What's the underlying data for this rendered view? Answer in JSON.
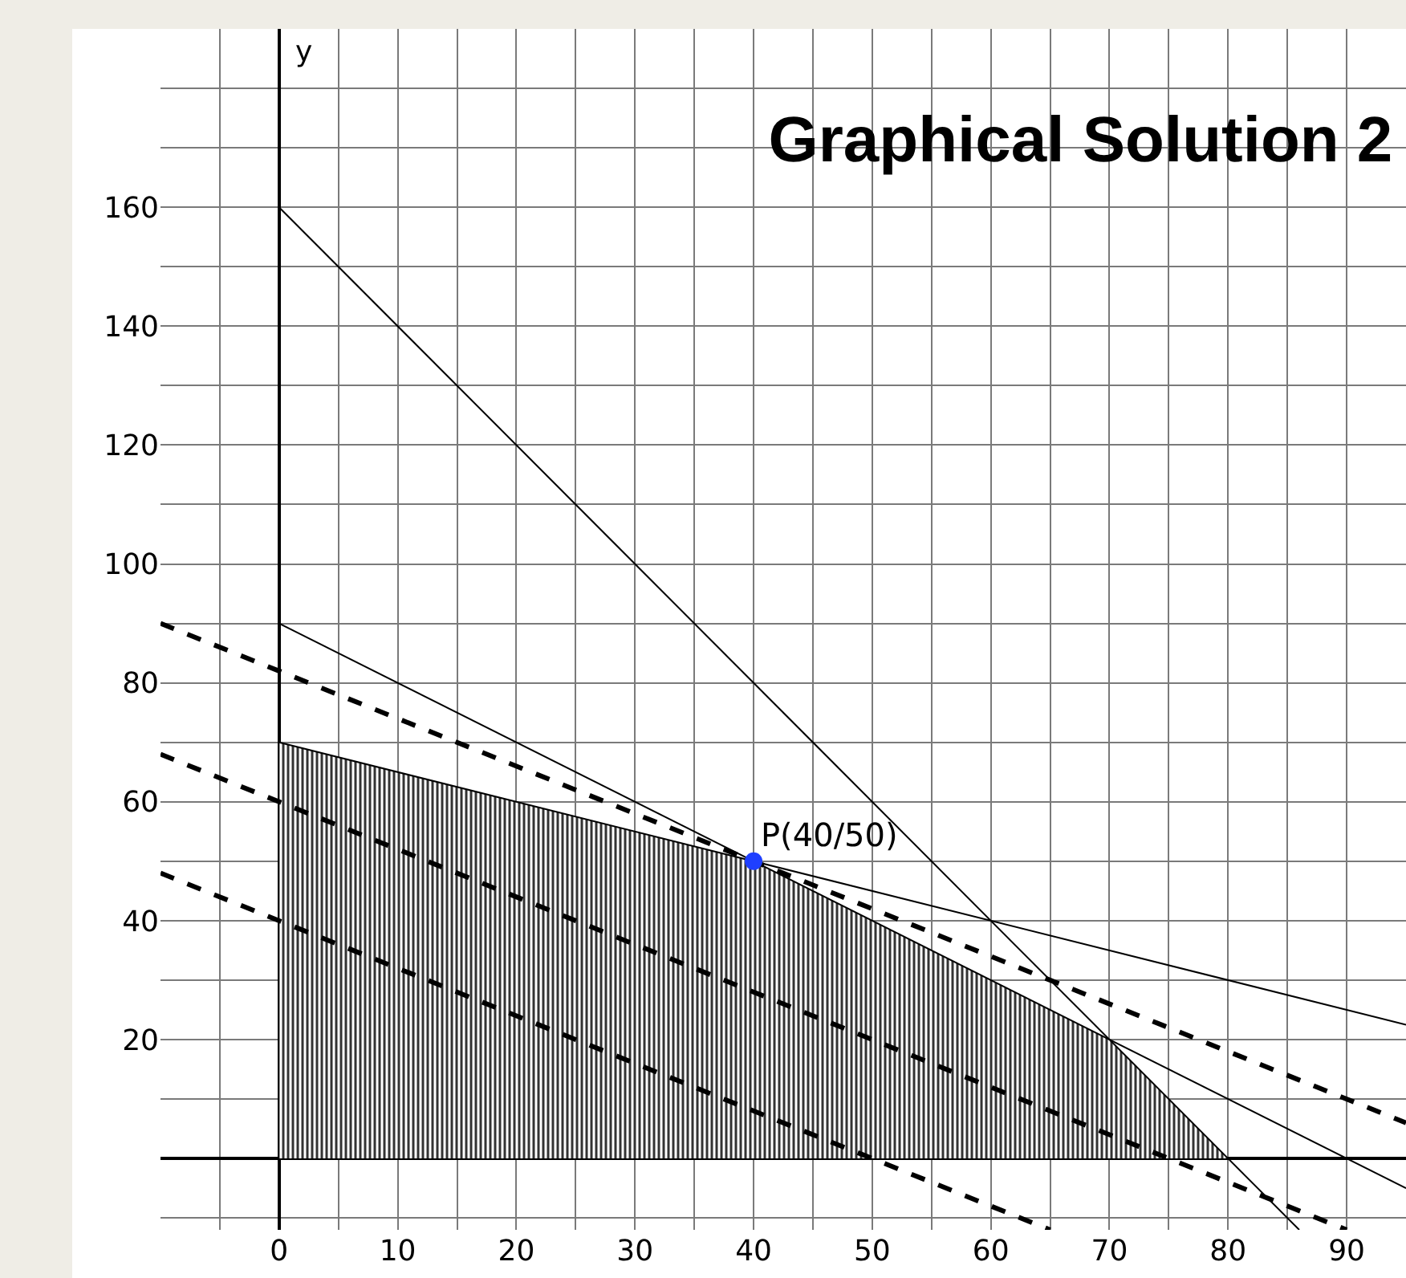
{
  "chart_data": {
    "type": "line",
    "title": "Graphical Solution 2",
    "ylabel": "y",
    "xlim": [
      -10,
      95
    ],
    "ylim": [
      -12,
      190
    ],
    "xticks": [
      {
        "value": -5,
        "label": null
      },
      0,
      {
        "value": 5,
        "label": null
      },
      10,
      {
        "value": 15,
        "label": null
      },
      20,
      {
        "value": 25,
        "label": null
      },
      30,
      {
        "value": 35,
        "label": null
      },
      40,
      {
        "value": 45,
        "label": null
      },
      50,
      {
        "value": 55,
        "label": null
      },
      60,
      {
        "value": 65,
        "label": null
      },
      70,
      {
        "value": 75,
        "label": null
      },
      80,
      {
        "value": 85,
        "label": null
      },
      90
    ],
    "yticks": [
      {
        "value": -10,
        "label": null
      },
      {
        "value": 10,
        "label": null
      },
      20,
      {
        "value": 30,
        "label": null
      },
      40,
      {
        "value": 50,
        "label": null
      },
      60,
      {
        "value": 70,
        "label": null
      },
      80,
      {
        "value": 90,
        "label": null
      },
      100,
      {
        "value": 110,
        "label": null
      },
      120,
      {
        "value": 130,
        "label": null
      },
      140,
      {
        "value": 150,
        "label": null
      },
      160,
      {
        "value": 170,
        "label": null
      },
      {
        "value": 180,
        "label": null
      }
    ],
    "grid": true,
    "series": [
      {
        "type": "area",
        "color": "#8c8c8c",
        "x": [
          0,
          0,
          40,
          70,
          80
        ],
        "values": [
          0,
          70,
          50,
          20,
          0
        ]
      },
      {
        "color": "#000000",
        "x": [
          0,
          86
        ],
        "values": [
          160,
          -12
        ]
      },
      {
        "color": "#000000",
        "x": [
          0,
          95
        ],
        "values": [
          90,
          -5
        ]
      },
      {
        "color": "#000000",
        "x": [
          0,
          95
        ],
        "values": [
          70,
          22.5
        ]
      },
      {
        "color": "#000000",
        "line_style": "dashed",
        "x": [
          -10,
          95
        ],
        "values": [
          90,
          6
        ]
      },
      {
        "color": "#000000",
        "line_style": "dashed",
        "x": [
          -10,
          90
        ],
        "values": [
          68,
          -12
        ]
      },
      {
        "color": "#000000",
        "line_style": "dashed",
        "x": [
          -10,
          65
        ],
        "values": [
          48,
          -12
        ]
      },
      {
        "type": "scatter",
        "color": "#1f3fff",
        "marker": "circle",
        "x": [
          40
        ],
        "values": [
          50
        ]
      }
    ],
    "annotations": [
      {
        "text": "P(40/50)",
        "x": 40,
        "y": 50
      }
    ]
  }
}
